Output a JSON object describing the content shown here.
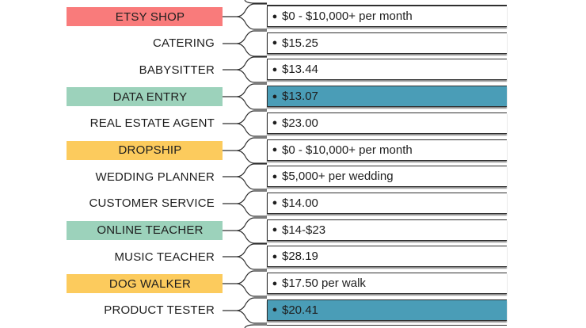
{
  "colors": {
    "red": "#f97b7b",
    "green": "#9cd2bb",
    "yellow": "#fccb5d",
    "blue_value": "#4a9db7"
  },
  "rows": [
    {
      "label": "ETSY SHOP",
      "value": "$0 - $10,000+ per month",
      "label_color": "red",
      "highlight": false
    },
    {
      "label": "CATERING",
      "value": "$15.25",
      "label_color": null,
      "highlight": false
    },
    {
      "label": "BABYSITTER",
      "value": "$13.44",
      "label_color": null,
      "highlight": false
    },
    {
      "label": "DATA ENTRY",
      "value": "$13.07",
      "label_color": "green",
      "highlight": true
    },
    {
      "label": "REAL ESTATE AGENT",
      "value": "$23.00",
      "label_color": null,
      "highlight": false
    },
    {
      "label": "DROPSHIP",
      "value": "$0 - $10,000+ per month",
      "label_color": "yellow",
      "highlight": false
    },
    {
      "label": "WEDDING PLANNER",
      "value": "$5,000+ per wedding",
      "label_color": null,
      "highlight": false
    },
    {
      "label": "CUSTOMER SERVICE",
      "value": "$14.00",
      "label_color": null,
      "highlight": false
    },
    {
      "label": "ONLINE TEACHER",
      "value": "$14-$23",
      "label_color": "green",
      "highlight": false
    },
    {
      "label": "MUSIC TEACHER",
      "value": "$28.19",
      "label_color": null,
      "highlight": false
    },
    {
      "label": "DOG WALKER",
      "value": "$17.50 per walk",
      "label_color": "yellow",
      "highlight": false
    },
    {
      "label": "PRODUCT TESTER",
      "value": "$20.41",
      "label_color": null,
      "highlight": true
    }
  ]
}
